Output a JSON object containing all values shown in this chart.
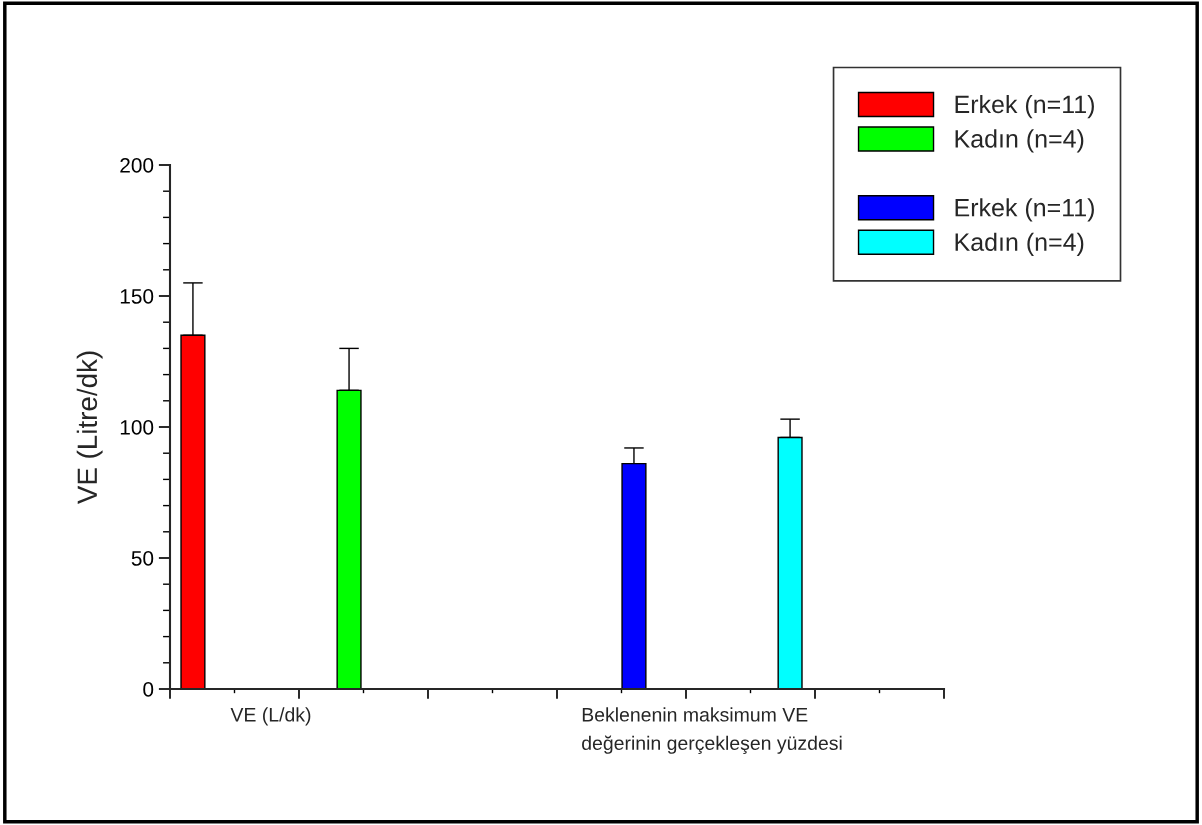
{
  "chart_data": {
    "type": "bar",
    "ylabel": "VE (Litre/dk)",
    "categories": [
      "VE (L/dk)",
      "Beklenenin maksimum VE\ndeğerinin gerçekleşen yüzdesi"
    ],
    "series": [
      {
        "name": "Erkek (n=11)",
        "color": "#ff0000",
        "values": [
          135,
          null
        ],
        "errors": [
          [
            135,
            155
          ],
          null
        ]
      },
      {
        "name": "Kadın (n=4)",
        "color": "#00ff00",
        "values": [
          114,
          null
        ],
        "errors": [
          [
            114,
            130
          ],
          null
        ]
      },
      {
        "name": "Erkek (n=11)",
        "color": "#0000ff",
        "values": [
          null,
          86
        ],
        "errors": [
          null,
          [
            86,
            92
          ]
        ]
      },
      {
        "name": "Kadın (n=4)",
        "color": "#00ffff",
        "values": [
          null,
          96
        ],
        "errors": [
          null,
          [
            96,
            103
          ]
        ]
      }
    ],
    "ylim": [
      0,
      200
    ],
    "yticks": [
      0,
      50,
      100,
      150,
      200
    ],
    "grid": false,
    "legend": "top right"
  }
}
